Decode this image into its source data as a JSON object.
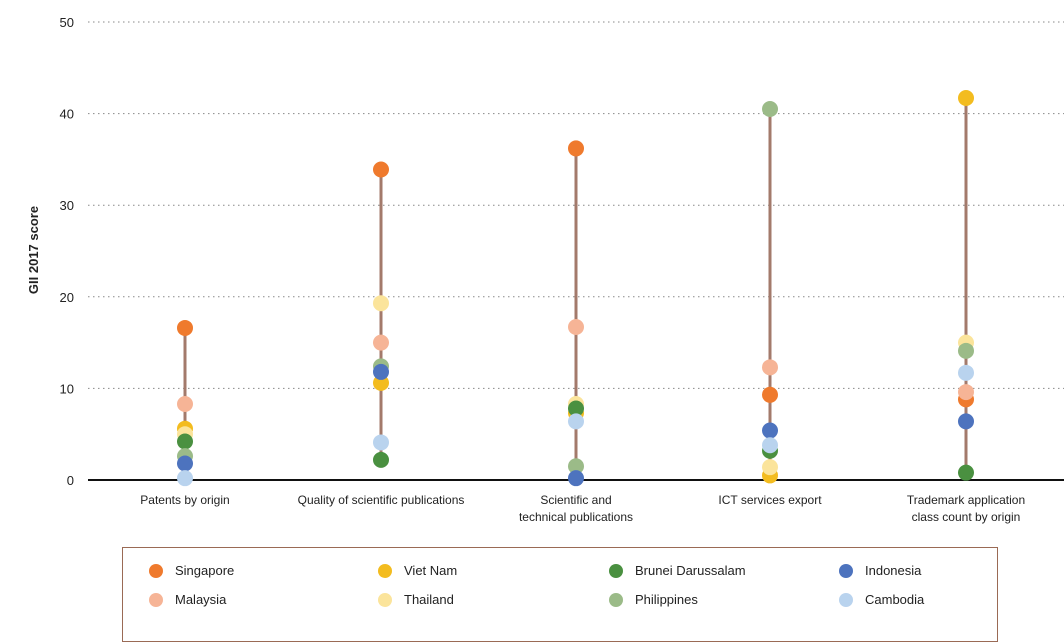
{
  "chart_data": {
    "type": "scatter",
    "subtype": "dot-range",
    "ylabel": "GII 2017 score",
    "ylim": [
      0,
      50
    ],
    "yticks": [
      0,
      10,
      20,
      30,
      40,
      50
    ],
    "grid": "horizontal dotted",
    "legend_position": "bottom",
    "range_line_color": "#a37a6b",
    "categories": [
      {
        "label_lines": [
          "Patents by origin"
        ]
      },
      {
        "label_lines": [
          "Quality of scientific publications"
        ]
      },
      {
        "label_lines": [
          "Scientific and",
          "technical publications"
        ]
      },
      {
        "label_lines": [
          "ICT services export"
        ]
      },
      {
        "label_lines": [
          "Trademark application",
          "class count by origin"
        ]
      }
    ],
    "series": [
      {
        "name": "Singapore",
        "color": "#ef7a2d",
        "values": [
          16.6,
          33.9,
          36.2,
          9.3,
          8.8
        ]
      },
      {
        "name": "Malaysia",
        "color": "#f6b496",
        "values": [
          8.3,
          15.0,
          16.7,
          12.3,
          9.6
        ]
      },
      {
        "name": "Viet Nam",
        "color": "#f3bc1f",
        "values": [
          5.6,
          10.6,
          7.3,
          0.5,
          41.7
        ]
      },
      {
        "name": "Thailand",
        "color": "#fbe49b",
        "values": [
          5.0,
          19.3,
          8.3,
          1.4,
          15.0
        ]
      },
      {
        "name": "Brunei Darussalam",
        "color": "#4a9040",
        "values": [
          4.2,
          2.2,
          7.8,
          3.2,
          0.8
        ]
      },
      {
        "name": "Philippines",
        "color": "#9bbb88",
        "values": [
          2.6,
          12.4,
          1.5,
          40.5,
          14.1
        ]
      },
      {
        "name": "Indonesia",
        "color": "#4d73be",
        "values": [
          1.8,
          11.8,
          0.2,
          5.4,
          6.4
        ]
      },
      {
        "name": "Cambodia",
        "color": "#b9d3ee",
        "values": [
          0.2,
          4.1,
          6.4,
          3.8,
          11.7
        ]
      }
    ]
  }
}
